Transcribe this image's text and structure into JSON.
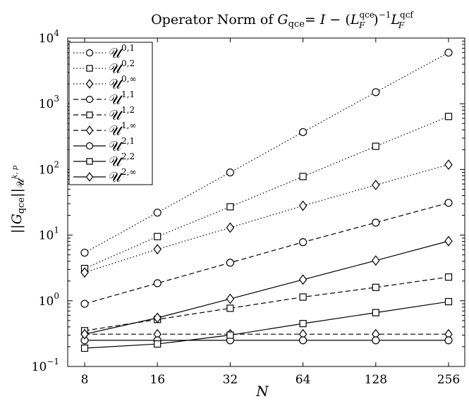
{
  "chart_data": {
    "type": "line",
    "title": {
      "prefix": "Operator Norm of ",
      "G": "G",
      "G_sub": "qce",
      "eq": "= ",
      "I": "I",
      "minus": " − (",
      "L1": "L",
      "L1_sub": "F",
      "L1_sup": "qce",
      "close": ")",
      "inv": "−1",
      "L2": "L",
      "L2_sub": "F",
      "L2_sup": "qcf"
    },
    "xlabel": "N",
    "ylabel": {
      "open": "||",
      "G": "G",
      "sub": "qce",
      "close": "||",
      "U": "𝒰",
      "sup": "k, p"
    },
    "x_scale": "log2",
    "y_scale": "log10",
    "x": [
      8,
      16,
      32,
      64,
      128,
      256
    ],
    "x_tick_labels": [
      "8",
      "16",
      "32",
      "64",
      "128",
      "256"
    ],
    "y_ticks": [
      {
        "base": "10",
        "exp": "−1"
      },
      {
        "base": "10",
        "exp": "0"
      },
      {
        "base": "10",
        "exp": "1"
      },
      {
        "base": "10",
        "exp": "2"
      },
      {
        "base": "10",
        "exp": "3"
      },
      {
        "base": "10",
        "exp": "4"
      }
    ],
    "ylim": [
      0.1,
      10000
    ],
    "grid": false,
    "legend_position": "top-left",
    "series": [
      {
        "name": "𝒰",
        "sup": "0,1",
        "line": "dotted",
        "marker": "circle",
        "values": [
          5.4,
          22,
          90,
          370,
          1500,
          6000
        ]
      },
      {
        "name": "𝒰",
        "sup": "0,2",
        "line": "dotted",
        "marker": "square",
        "values": [
          3.1,
          9.5,
          27,
          78,
          225,
          640
        ]
      },
      {
        "name": "𝒰",
        "sup": "0,∞",
        "line": "dotted",
        "marker": "diamond",
        "values": [
          2.7,
          6.1,
          13,
          28,
          58,
          118
        ]
      },
      {
        "name": "𝒰",
        "sup": "1,1",
        "line": "dashed",
        "marker": "circle",
        "values": [
          0.9,
          1.85,
          3.8,
          7.8,
          15.5,
          31
        ]
      },
      {
        "name": "𝒰",
        "sup": "1,2",
        "line": "dashed",
        "marker": "square",
        "values": [
          0.35,
          0.52,
          0.77,
          1.14,
          1.6,
          2.3
        ]
      },
      {
        "name": "𝒰",
        "sup": "1,∞",
        "line": "dashed",
        "marker": "diamond",
        "values": [
          0.31,
          0.31,
          0.31,
          0.31,
          0.31,
          0.31
        ]
      },
      {
        "name": "𝒰",
        "sup": "2,1",
        "line": "solid",
        "marker": "circle",
        "values": [
          0.25,
          0.25,
          0.25,
          0.25,
          0.25,
          0.25
        ]
      },
      {
        "name": "𝒰",
        "sup": "2,2",
        "line": "solid",
        "marker": "square",
        "values": [
          0.19,
          0.22,
          0.3,
          0.45,
          0.66,
          0.97
        ]
      },
      {
        "name": "𝒰",
        "sup": "2,∞",
        "line": "solid",
        "marker": "diamond",
        "values": [
          0.31,
          0.55,
          1.07,
          2.1,
          4.1,
          8.1
        ]
      }
    ]
  }
}
